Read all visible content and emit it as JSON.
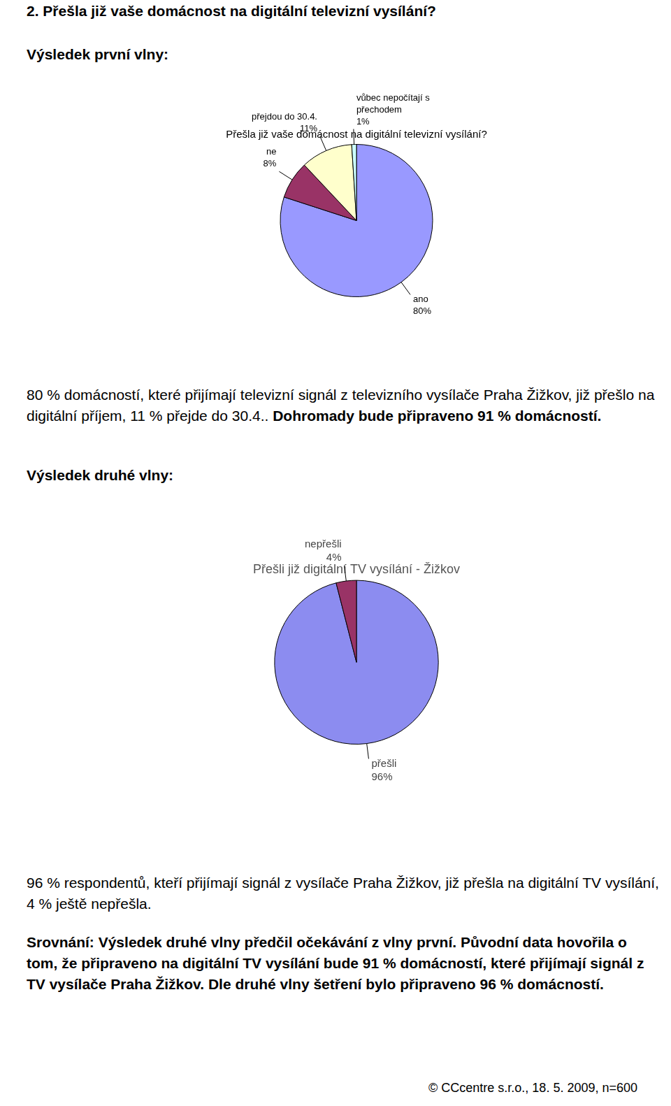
{
  "document": {
    "heading": "2. Přešla již vaše domácnost na digitální televizní vysílání?",
    "wave1_label": "Výsledek první vlny:",
    "wave1_text": "80 % domácností, které přijímají televizní signál z televizního vysílače Praha Žižkov, již přešlo na digitální příjem, 11 % přejde do 30.4..",
    "wave1_bold_text": "Dohromady bude připraveno 91 % domácností.",
    "wave2_label": "Výsledek druhé vlny:",
    "wave2_text": "96 % respondentů, kteří přijímají signál z vysílače Praha Žižkov, již přešla na digitální TV vysílání, 4 % ještě nepřešla.",
    "comparison": "Srovnání: Výsledek druhé vlny předčil očekávání z vlny první. Původní data hovořila o tom, že připraveno na digitální TV vysílání bude 91 % domácností, které přijímají signál z TV vysílače Praha Žižkov. Dle druhé vlny šetření bylo připraveno 96 % domácností.",
    "footer": "© CCcentre s.r.o., 18. 5. 2009, n=600"
  },
  "chart_data": [
    {
      "type": "pie",
      "title": "Přešla již vaše domácnost na digitální televizní vysílání?",
      "categories": [
        "ano",
        "ne",
        "přejdou do 30.4.",
        "vůbec nepočítají s přechodem"
      ],
      "values": [
        80,
        8,
        11,
        1
      ],
      "value_labels": [
        "80%",
        "8%",
        "11%",
        "1%"
      ],
      "colors": [
        "#9999ff",
        "#993366",
        "#ffffcc",
        "#ccffff"
      ],
      "data_labels": true
    },
    {
      "type": "pie",
      "title": "Přešli již digitální TV vysílání - Žižkov",
      "categories": [
        "přešli",
        "nepřešli"
      ],
      "values": [
        96,
        4
      ],
      "value_labels": [
        "96%",
        "4%"
      ],
      "colors": [
        "#8c8cf0",
        "#993366"
      ],
      "data_labels": true
    }
  ]
}
